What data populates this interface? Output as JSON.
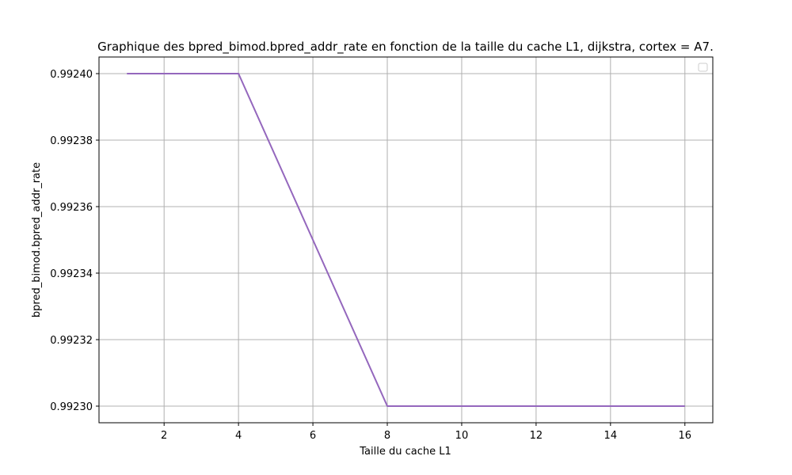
{
  "chart_data": {
    "type": "line",
    "title": "Graphique des bpred_bimod.bpred_addr_rate en fonction de la taille du cache L1, dijkstra, cortex = A7.",
    "xlabel": "Taille du cache L1",
    "ylabel": "bpred_bimod.bpred_addr_rate",
    "xlim": [
      0.25,
      16.75
    ],
    "ylim": [
      0.992295,
      0.992405
    ],
    "xticks": [
      2,
      4,
      6,
      8,
      10,
      12,
      14,
      16
    ],
    "yticks": [
      0.9923,
      0.99232,
      0.99234,
      0.99236,
      0.99238,
      0.9924
    ],
    "ytick_labels": [
      "0.99230",
      "0.99232",
      "0.99234",
      "0.99236",
      "0.99238",
      "0.99240"
    ],
    "grid": true,
    "legend": {
      "placement": "upper-right",
      "entries": []
    },
    "series": [
      {
        "x": [
          1,
          2,
          4,
          8,
          16
        ],
        "y": [
          0.9924,
          0.9924,
          0.9924,
          0.9923,
          0.9923
        ],
        "color": "#9467bd"
      }
    ]
  }
}
